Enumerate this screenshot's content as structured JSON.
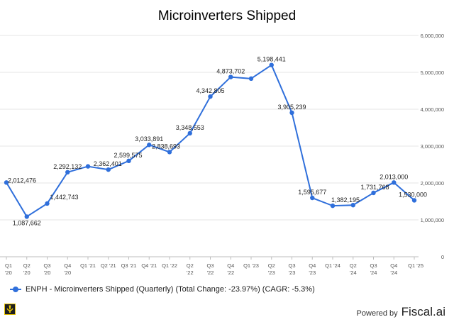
{
  "chart_data": {
    "type": "line",
    "title": "Microinverters Shipped",
    "categories": [
      "Q1 '20",
      "Q2 '20",
      "Q3 '20",
      "Q4 '20",
      "Q1 '21",
      "Q2 '21",
      "Q3 '21",
      "Q4 '21",
      "Q1 '22",
      "Q2 '22",
      "Q3 '22",
      "Q4 '22",
      "Q1 '23",
      "Q2 '23",
      "Q3 '23",
      "Q4 '23",
      "Q1 '24",
      "Q2 '24",
      "Q3 '24",
      "Q4 '24",
      "Q1 '25"
    ],
    "tick_labels": [
      [
        "Q1",
        "'20"
      ],
      [
        "Q2",
        "'20"
      ],
      [
        "Q3",
        "'20"
      ],
      [
        "Q4",
        "'20"
      ],
      [
        "Q1 '21",
        ""
      ],
      [
        "Q2 '21",
        ""
      ],
      [
        "Q3 '21",
        ""
      ],
      [
        "Q4 '21",
        ""
      ],
      [
        "Q1 '22",
        ""
      ],
      [
        "Q2",
        "'22"
      ],
      [
        "Q3",
        "'22"
      ],
      [
        "Q4",
        "'22"
      ],
      [
        "Q1 '23",
        ""
      ],
      [
        "Q2",
        "'23"
      ],
      [
        "Q3",
        "'23"
      ],
      [
        "Q4",
        "'23"
      ],
      [
        "Q1 '24",
        ""
      ],
      [
        "Q2",
        "'24"
      ],
      [
        "Q3",
        "'24"
      ],
      [
        "Q4",
        "'24"
      ],
      [
        "Q1 '25",
        ""
      ]
    ],
    "series": [
      {
        "name": "ENPH - Microinverters Shipped (Quarterly) (Total Change: -23.97%) (CAGR: -5.3%)",
        "color": "#2f6fdb",
        "values": [
          2012476,
          1087662,
          1442743,
          2292132,
          2450000,
          2362401,
          2599575,
          3033891,
          2838693,
          3348553,
          4342805,
          4873702,
          4830000,
          5198441,
          3905239,
          1595677,
          1382195,
          1400000,
          1731768,
          2013000,
          1530000
        ],
        "labels": [
          "2,012,476",
          "1,087,662",
          "1,442,743",
          "2,292,132",
          "",
          "2,362,401",
          "2,599,575",
          "3,033,891",
          "2,838,693",
          "3,348,553",
          "4,342,805",
          "4,873,702",
          "",
          "5,198,441",
          "3,905,239",
          "1,595,677",
          "1,382,195",
          "",
          "1,731,768",
          "2,013,000",
          "1,530,000"
        ]
      }
    ],
    "ylim": [
      0,
      6000000
    ],
    "yticks": [
      0,
      1000000,
      2000000,
      3000000,
      4000000,
      5000000,
      6000000
    ],
    "ytick_labels": [
      "0",
      "1,000,000",
      "2,000,000",
      "3,000,000",
      "4,000,000",
      "5,000,000",
      "6,000,000"
    ],
    "y_axis_side": "right",
    "grid": "horizontal",
    "legend_position": "bottom-left"
  },
  "footer": {
    "powered_label": "Powered by",
    "brand": "Fiscal.ai"
  }
}
